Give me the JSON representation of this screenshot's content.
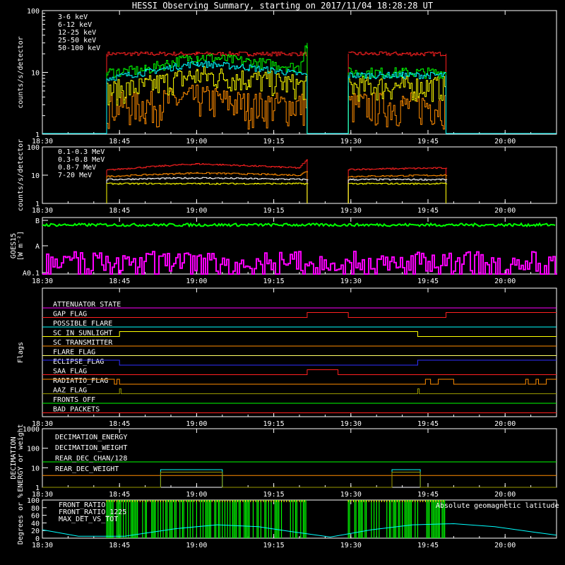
{
  "title": "HESSI Observing Summary, starting on 2017/11/04 18:28:28 UT",
  "time_axis": {
    "start_min": 1110,
    "end_min": 1210,
    "tick_labels": [
      "18:30",
      "18:45",
      "19:00",
      "19:15",
      "19:30",
      "19:45",
      "20:00"
    ],
    "tick_values": [
      1110,
      1125,
      1140,
      1155,
      1170,
      1185,
      1200
    ]
  },
  "chart_data": [
    {
      "type": "line",
      "id": "low_energy",
      "ylabel": "counts/s/detector",
      "yscale": "log",
      "ylim": [
        1,
        100
      ],
      "ytick_labels": [
        "1",
        "10",
        "100"
      ],
      "legend_position": "top-left",
      "series": [
        {
          "name": "3-6 keV",
          "color": "#ff2020",
          "segments": [
            {
              "x": [
                1122.5,
                1130,
                1140,
                1150,
                1161.5
              ],
              "y": [
                20,
                20,
                20,
                20,
                20
              ]
            },
            {
              "x": [
                1169.5,
                1180,
                1188.5
              ],
              "y": [
                20,
                20,
                20
              ]
            }
          ]
        },
        {
          "name": "6-12 keV",
          "color": "#ff8c00",
          "segments": [
            {
              "x": [
                1122.5,
                1130,
                1140,
                1150,
                1161.5
              ],
              "y": [
                3,
                3,
                4,
                3,
                3
              ]
            },
            {
              "x": [
                1169.5,
                1180,
                1188.5
              ],
              "y": [
                3,
                3,
                3
              ]
            }
          ]
        },
        {
          "name": "12-25 keV",
          "color": "#ffff00",
          "segments": [
            {
              "x": [
                1122.5,
                1130,
                1140,
                1150,
                1161.5
              ],
              "y": [
                5,
                6,
                9,
                8,
                6
              ]
            },
            {
              "x": [
                1169.5,
                1180,
                1188.5
              ],
              "y": [
                6,
                6,
                6
              ]
            }
          ]
        },
        {
          "name": "25-50 keV",
          "color": "#00ff00",
          "segments": [
            {
              "x": [
                1122.5,
                1130,
                1140,
                1150,
                1160,
                1161.5
              ],
              "y": [
                10,
                11,
                18,
                15,
                12,
                30
              ]
            },
            {
              "x": [
                1169.5,
                1180,
                1188.5
              ],
              "y": [
                10,
                10,
                10
              ]
            }
          ]
        },
        {
          "name": "50-100 keV",
          "color": "#00ffff",
          "segments": [
            {
              "x": [
                1122.5,
                1130,
                1140,
                1150,
                1161.5
              ],
              "y": [
                8,
                10,
                14,
                12,
                9
              ]
            },
            {
              "x": [
                1169.5,
                1180,
                1188.5
              ],
              "y": [
                9,
                9,
                9
              ]
            }
          ]
        }
      ]
    },
    {
      "type": "line",
      "id": "high_energy",
      "ylabel": "counts/s/detector",
      "yscale": "log",
      "ylim": [
        1,
        100
      ],
      "ytick_labels": [
        "1",
        "10",
        "100"
      ],
      "legend_position": "top-left",
      "series": [
        {
          "name": "0.1-0.3 MeV",
          "color": "#ff2020",
          "segments": [
            {
              "x": [
                1122.5,
                1140,
                1160,
                1161.5
              ],
              "y": [
                15,
                25,
                18,
                35
              ]
            },
            {
              "x": [
                1169.5,
                1188.5
              ],
              "y": [
                16,
                18
              ]
            }
          ]
        },
        {
          "name": "0.3-0.8 MeV",
          "color": "#ff8c00",
          "segments": [
            {
              "x": [
                1122.5,
                1140,
                1160,
                1161.5
              ],
              "y": [
                9,
                12,
                10,
                14
              ]
            },
            {
              "x": [
                1169.5,
                1188.5
              ],
              "y": [
                9,
                10
              ]
            }
          ]
        },
        {
          "name": "0.8-7 MeV",
          "color": "#ffffff",
          "segments": [
            {
              "x": [
                1122.5,
                1140,
                1161.5
              ],
              "y": [
                7,
                8,
                7
              ]
            },
            {
              "x": [
                1169.5,
                1188.5
              ],
              "y": [
                7,
                7
              ]
            }
          ]
        },
        {
          "name": "7-20 MeV",
          "color": "#ffff00",
          "segments": [
            {
              "x": [
                1122.5,
                1140,
                1161.5
              ],
              "y": [
                5,
                5,
                5
              ]
            },
            {
              "x": [
                1169.5,
                1188.5
              ],
              "y": [
                5,
                5
              ]
            }
          ]
        }
      ]
    },
    {
      "type": "line",
      "id": "goes",
      "ylabel_line1": "GOES15",
      "ylabel_line2": "[W m⁻²]",
      "ytick_labels": [
        "A0.1",
        "A",
        "B"
      ],
      "series": [
        {
          "color": "#00ff00",
          "segments": [
            {
              "x": [
                1110,
                1210
              ],
              "y": [
                0.9,
                0.9
              ]
            }
          ]
        },
        {
          "color": "#ff00ff",
          "segments": [
            {
              "x": [
                1110,
                1210
              ],
              "y": [
                0.2,
                0.2
              ]
            }
          ]
        }
      ]
    },
    {
      "type": "step",
      "id": "flags",
      "ylabel": "Flags",
      "series": [
        {
          "name": "ATTENUATOR_STATE",
          "color": "#ff00ff",
          "transitions": []
        },
        {
          "name": "GAP_FLAG",
          "color": "#ff2020",
          "transitions": [
            1161.5,
            1169.5,
            1188.5
          ]
        },
        {
          "name": "POSSIBLE_FLARE",
          "color": "#00ffff",
          "transitions": []
        },
        {
          "name": "SC_IN_SUNLIGHT",
          "color": "#ffff00",
          "transitions": [
            1125,
            1183
          ]
        },
        {
          "name": "SC_TRANSMITTER",
          "color": "#ff8c00",
          "transitions": []
        },
        {
          "name": "FLARE_FLAG",
          "color": "#ffff66",
          "transitions": []
        },
        {
          "name": "ECLIPSE_FLAG",
          "color": "#3030ff",
          "transitions": [
            1125,
            1183
          ]
        },
        {
          "name": "SAA_FLAG",
          "color": "#ff2020",
          "transitions": [
            1161.5,
            1167.5
          ]
        },
        {
          "name": "RADIATIO_FLAG",
          "color": "#ff8c00",
          "transitions": [
            1125,
            1170,
            1185,
            1190,
            1205,
            1210
          ]
        },
        {
          "name": "AAZ_FLAG",
          "color": "#999900",
          "transitions": [
            1125,
            1183
          ]
        },
        {
          "name": "FRONTS_OFF",
          "color": "#00ff00",
          "transitions": []
        },
        {
          "name": "BAD_PACKETS",
          "color": "#ff2020",
          "transitions": []
        }
      ]
    },
    {
      "type": "line",
      "id": "decimation",
      "ylabel_line1": "DECIMATION",
      "ylabel_line2": "ENERGY or weight",
      "yscale": "log",
      "ylim": [
        1,
        1000
      ],
      "ytick_labels": [
        "1",
        "10",
        "100",
        "1000"
      ],
      "series": [
        {
          "name": "DECIMATION_ENERGY",
          "color": "#00ff00",
          "segments": [
            {
              "x": [
                1110,
                1210
              ],
              "y": [
                20,
                20
              ]
            }
          ]
        },
        {
          "name": "DECIMATION_WEIGHT",
          "color": "#ff8c00",
          "segments": [
            {
              "x": [
                1110,
                1210
              ],
              "y": [
                4,
                4
              ]
            }
          ]
        },
        {
          "name": "REAR_DEC_CHAN/128",
          "color": "#00ffff",
          "segments": [
            {
              "x": [
                1110,
                1133,
                1133,
                1145,
                1145,
                1178,
                1178,
                1183.5,
                1183.5,
                1210
              ],
              "y": [
                1,
                1,
                8,
                8,
                1,
                1,
                8,
                8,
                1,
                1
              ]
            }
          ]
        },
        {
          "name": "REAR_DEC_WEIGHT",
          "color": "#999900",
          "segments": [
            {
              "x": [
                1110,
                1133,
                1133,
                1145,
                1145,
                1178,
                1178,
                1183.5,
                1183.5,
                1210
              ],
              "y": [
                1,
                1,
                6,
                6,
                1,
                1,
                6,
                6,
                1,
                1
              ]
            }
          ]
        }
      ]
    },
    {
      "type": "line",
      "id": "ratios",
      "ylabel": "Degrees or %",
      "ylim": [
        0,
        100
      ],
      "ytick_labels": [
        "0",
        "20",
        "40",
        "60",
        "80",
        "100"
      ],
      "series": [
        {
          "name": "FRONT_RATIO",
          "color": "#ffff00",
          "segments": [
            {
              "x": [
                1122.5,
                1161.5
              ],
              "y": [
                100,
                100
              ]
            },
            {
              "x": [
                1169.5,
                1188.5
              ],
              "y": [
                100,
                100
              ]
            }
          ]
        },
        {
          "name": "FRONT_RATIO_1225",
          "color": "#00ff00",
          "segments": [
            {
              "x": [
                1122.5,
                1161.5
              ],
              "y": [
                90,
                90
              ]
            },
            {
              "x": [
                1169.5,
                1188.5
              ],
              "y": [
                90,
                90
              ]
            }
          ]
        },
        {
          "name": "MAX_DET_VS_TOT",
          "color": "#ff8c00",
          "segments": [
            {
              "x": [
                1122.5,
                1161.5
              ],
              "y": [
                80,
                80
              ]
            },
            {
              "x": [
                1169.5,
                1188.5
              ],
              "y": [
                80,
                80
              ]
            }
          ]
        },
        {
          "name": "Absolute geomagnetic latitude",
          "color": "#00ffff",
          "segments": [
            {
              "x": [
                1110,
                1117,
                1126,
                1136,
                1144,
                1152,
                1158,
                1166,
                1174,
                1182,
                1190,
                1198,
                1206,
                1210
              ],
              "y": [
                22,
                5,
                5,
                25,
                35,
                30,
                18,
                3,
                22,
                35,
                38,
                30,
                15,
                8
              ]
            }
          ]
        }
      ]
    }
  ]
}
